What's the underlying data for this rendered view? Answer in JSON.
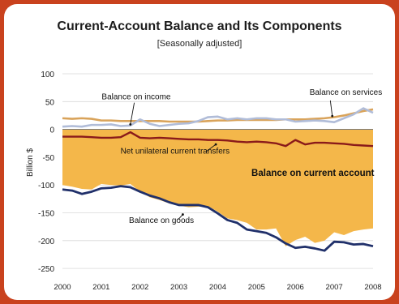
{
  "chart_data": {
    "type": "area",
    "title": "Current-Account Balance and Its Components",
    "subtitle": "[Seasonally adjusted]",
    "ylabel": "Billion $",
    "xlabel": "",
    "ylim": [
      -260,
      100
    ],
    "xlim": [
      2000,
      2008
    ],
    "yticks": [
      100,
      50,
      0,
      -50,
      -100,
      -150,
      -200,
      -250
    ],
    "xticks": [
      2000,
      2001,
      2002,
      2003,
      2004,
      2005,
      2006,
      2007,
      2008
    ],
    "grid": true,
    "x": [
      2000.0,
      2000.25,
      2000.5,
      2000.75,
      2001.0,
      2001.25,
      2001.5,
      2001.75,
      2002.0,
      2002.25,
      2002.5,
      2002.75,
      2003.0,
      2003.25,
      2003.5,
      2003.75,
      2004.0,
      2004.25,
      2004.5,
      2004.75,
      2005.0,
      2005.25,
      2005.5,
      2005.75,
      2006.0,
      2006.25,
      2006.5,
      2006.75,
      2007.0,
      2007.25,
      2007.5,
      2007.75,
      2008.0
    ],
    "series": [
      {
        "name": "Balance on services",
        "color": "#d9a35a",
        "values": [
          20,
          19,
          20,
          19,
          16,
          16,
          15,
          15,
          15,
          15,
          15,
          14,
          14,
          14,
          14,
          15,
          16,
          16,
          17,
          17,
          17,
          17,
          17,
          18,
          18,
          18,
          19,
          20,
          22,
          25,
          29,
          33,
          36
        ]
      },
      {
        "name": "Balance on income",
        "color": "#b0bcd8",
        "values": [
          5,
          6,
          5,
          8,
          8,
          9,
          6,
          7,
          18,
          10,
          6,
          8,
          10,
          11,
          15,
          22,
          23,
          18,
          20,
          18,
          20,
          20,
          18,
          18,
          14,
          15,
          16,
          15,
          13,
          20,
          27,
          38,
          30
        ]
      },
      {
        "name": "Net unilateral current transfers",
        "color": "#8a1a1a",
        "values": [
          -13,
          -13,
          -13,
          -14,
          -15,
          -15,
          -14,
          -5,
          -15,
          -16,
          -15,
          -16,
          -17,
          -18,
          -18,
          -19,
          -19,
          -20,
          -22,
          -23,
          -22,
          -23,
          -25,
          -30,
          -19,
          -27,
          -24,
          -24,
          -25,
          -26,
          -28,
          -29,
          -30
        ]
      },
      {
        "name": "Balance on goods",
        "color": "#20306a",
        "values": [
          -108,
          -110,
          -116,
          -112,
          -106,
          -105,
          -102,
          -104,
          -112,
          -119,
          -124,
          -131,
          -136,
          -136,
          -136,
          -140,
          -151,
          -163,
          -168,
          -180,
          -183,
          -186,
          -194,
          -205,
          -213,
          -211,
          -214,
          -218,
          -202,
          -203,
          -207,
          -206,
          -210
        ]
      },
      {
        "name": "Balance on current account",
        "color": "#f4b74a",
        "values": [
          -100,
          -103,
          -107,
          -108,
          -98,
          -100,
          -101,
          -98,
          -112,
          -122,
          -127,
          -133,
          -137,
          -140,
          -139,
          -138,
          -148,
          -160,
          -163,
          -168,
          -180,
          -180,
          -178,
          -210,
          -199,
          -193,
          -204,
          -200,
          -185,
          -190,
          -183,
          -180,
          -178
        ]
      }
    ],
    "annotations": [
      {
        "text": "Balance on income",
        "x": 2001.9,
        "y": 60
      },
      {
        "text": "Balance on services",
        "x": 2007.3,
        "y": 68
      },
      {
        "text": "Net unilateral current transfers",
        "x": 2002.9,
        "y": -38
      },
      {
        "text": "Balance on current account",
        "x": 2006.45,
        "y": -78
      },
      {
        "text": "Balance on goods",
        "x": 2002.55,
        "y": -162
      }
    ]
  }
}
